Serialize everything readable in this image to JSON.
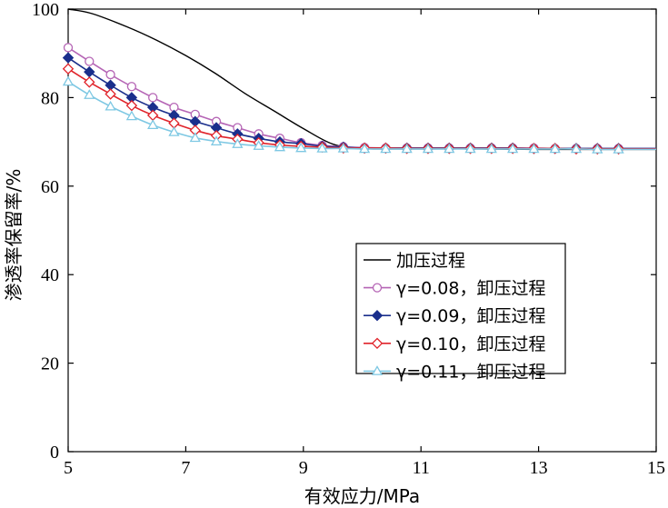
{
  "chart_data": {
    "type": "line",
    "xlabel": "有效应力/MPa",
    "ylabel": "渗透率保留率/%",
    "xlim": [
      5,
      15
    ],
    "ylim": [
      0,
      100
    ],
    "xticks": [
      5,
      7,
      9,
      11,
      13,
      15
    ],
    "yticks": [
      0,
      20,
      40,
      60,
      80,
      100
    ],
    "grid": false,
    "legend_position": "center-right",
    "series": [
      {
        "name": "加压过程",
        "color": "#000000",
        "marker": "none",
        "x": [
          5,
          5.4,
          6,
          6.5,
          7,
          7.5,
          8,
          8.5,
          9,
          9.5,
          10,
          10.5,
          11,
          12,
          13,
          14,
          15
        ],
        "y": [
          100,
          99,
          96,
          93,
          89.5,
          85.5,
          81,
          77,
          73,
          69.5,
          68.5,
          68.4,
          68.4,
          68.4,
          68.3,
          68.3,
          68.3
        ]
      },
      {
        "name": "γ=0.08，卸压过程",
        "color": "#b565b5",
        "marker": "circle",
        "x": [
          5,
          5.36,
          5.72,
          6.08,
          6.44,
          6.8,
          7.16,
          7.52,
          7.88,
          8.24,
          8.6,
          8.96,
          9.32,
          9.68,
          10.04,
          10.4,
          10.76,
          11.12,
          11.48,
          11.84,
          12.2,
          12.56,
          12.92,
          13.28,
          13.64,
          14,
          14.36
        ],
        "y": [
          91.3,
          88.2,
          85.2,
          82.5,
          80,
          77.8,
          76.2,
          74.6,
          73.2,
          71.8,
          70.8,
          69.8,
          69.2,
          68.9,
          68.7,
          68.6,
          68.6,
          68.6,
          68.6,
          68.6,
          68.6,
          68.6,
          68.6,
          68.5,
          68.5,
          68.5,
          68.5
        ]
      },
      {
        "name": "γ=0.09，卸压过程",
        "color": "#1a2f8c",
        "marker": "diamond-filled",
        "x": [
          5,
          5.36,
          5.72,
          6.08,
          6.44,
          6.8,
          7.16,
          7.52,
          7.88,
          8.24,
          8.6,
          8.96,
          9.32,
          9.68,
          10.04,
          10.4,
          10.76,
          11.12,
          11.48,
          11.84,
          12.2,
          12.56,
          12.92,
          13.28,
          13.64,
          14,
          14.36
        ],
        "y": [
          89,
          85.8,
          82.8,
          80,
          77.8,
          76,
          74.6,
          73.2,
          71.8,
          70.8,
          70,
          69.6,
          69,
          68.8,
          68.6,
          68.6,
          68.6,
          68.6,
          68.6,
          68.6,
          68.6,
          68.6,
          68.5,
          68.5,
          68.5,
          68.5,
          68.5
        ]
      },
      {
        "name": "γ=0.10，卸压过程",
        "color": "#e0232a",
        "marker": "diamond-open",
        "x": [
          5,
          5.36,
          5.72,
          6.08,
          6.44,
          6.8,
          7.16,
          7.52,
          7.88,
          8.24,
          8.6,
          8.96,
          9.32,
          9.68,
          10.04,
          10.4,
          10.76,
          11.12,
          11.48,
          11.84,
          12.2,
          12.56,
          12.92,
          13.28,
          13.64,
          14,
          14.36
        ],
        "y": [
          86.5,
          83.5,
          80.8,
          78.2,
          76,
          74.2,
          72.6,
          71.4,
          70.6,
          69.8,
          69.3,
          69,
          68.8,
          68.6,
          68.6,
          68.6,
          68.5,
          68.5,
          68.5,
          68.5,
          68.5,
          68.5,
          68.5,
          68.5,
          68.4,
          68.4,
          68.4
        ]
      },
      {
        "name": "γ=0.11，卸压过程",
        "color": "#7ec8e3",
        "marker": "triangle",
        "x": [
          5,
          5.36,
          5.72,
          6.08,
          6.44,
          6.8,
          7.16,
          7.52,
          7.88,
          8.24,
          8.6,
          8.96,
          9.32,
          9.68,
          10.04,
          10.4,
          10.76,
          11.12,
          11.48,
          11.84,
          12.2,
          12.56,
          12.92,
          13.28,
          13.64,
          14,
          14.36
        ],
        "y": [
          83.6,
          80.6,
          78,
          75.8,
          73.8,
          72.2,
          70.9,
          70.1,
          69.5,
          69.1,
          68.8,
          68.6,
          68.5,
          68.5,
          68.4,
          68.4,
          68.4,
          68.4,
          68.4,
          68.4,
          68.4,
          68.4,
          68.4,
          68.4,
          68.4,
          68.3,
          68.3
        ]
      }
    ]
  }
}
